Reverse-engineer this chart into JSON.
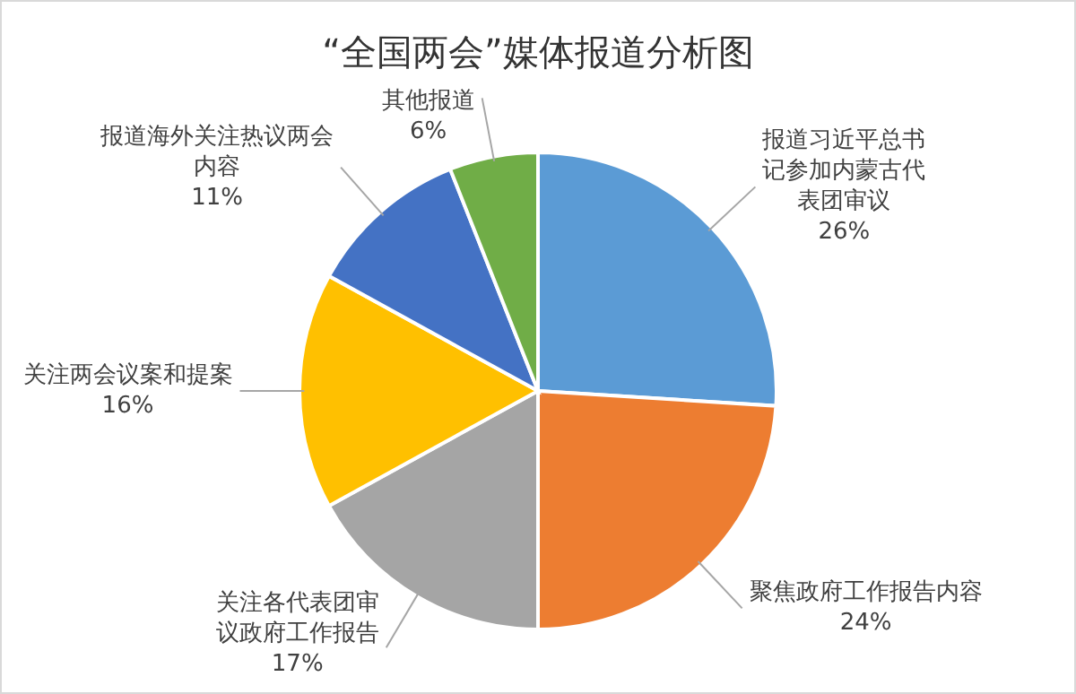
{
  "chart_data": {
    "type": "pie",
    "title": "“全国两会”媒体报道分析图",
    "categories": [
      "报道习近平总书记参加内蒙古代表团审议",
      "聚焦政府工作报告内容",
      "关注各代表团审议政府工作报告",
      "关注两会议案和提案",
      "报道海外关注热议两会内容",
      "其他报道"
    ],
    "values": [
      26,
      24,
      17,
      16,
      11,
      6
    ],
    "colors": [
      "#5b9bd5",
      "#ed7d31",
      "#a5a5a5",
      "#ffc000",
      "#4472c4",
      "#70ad47"
    ],
    "value_labels": [
      "26%",
      "24%",
      "17%",
      "16%",
      "11%",
      "6%"
    ]
  }
}
